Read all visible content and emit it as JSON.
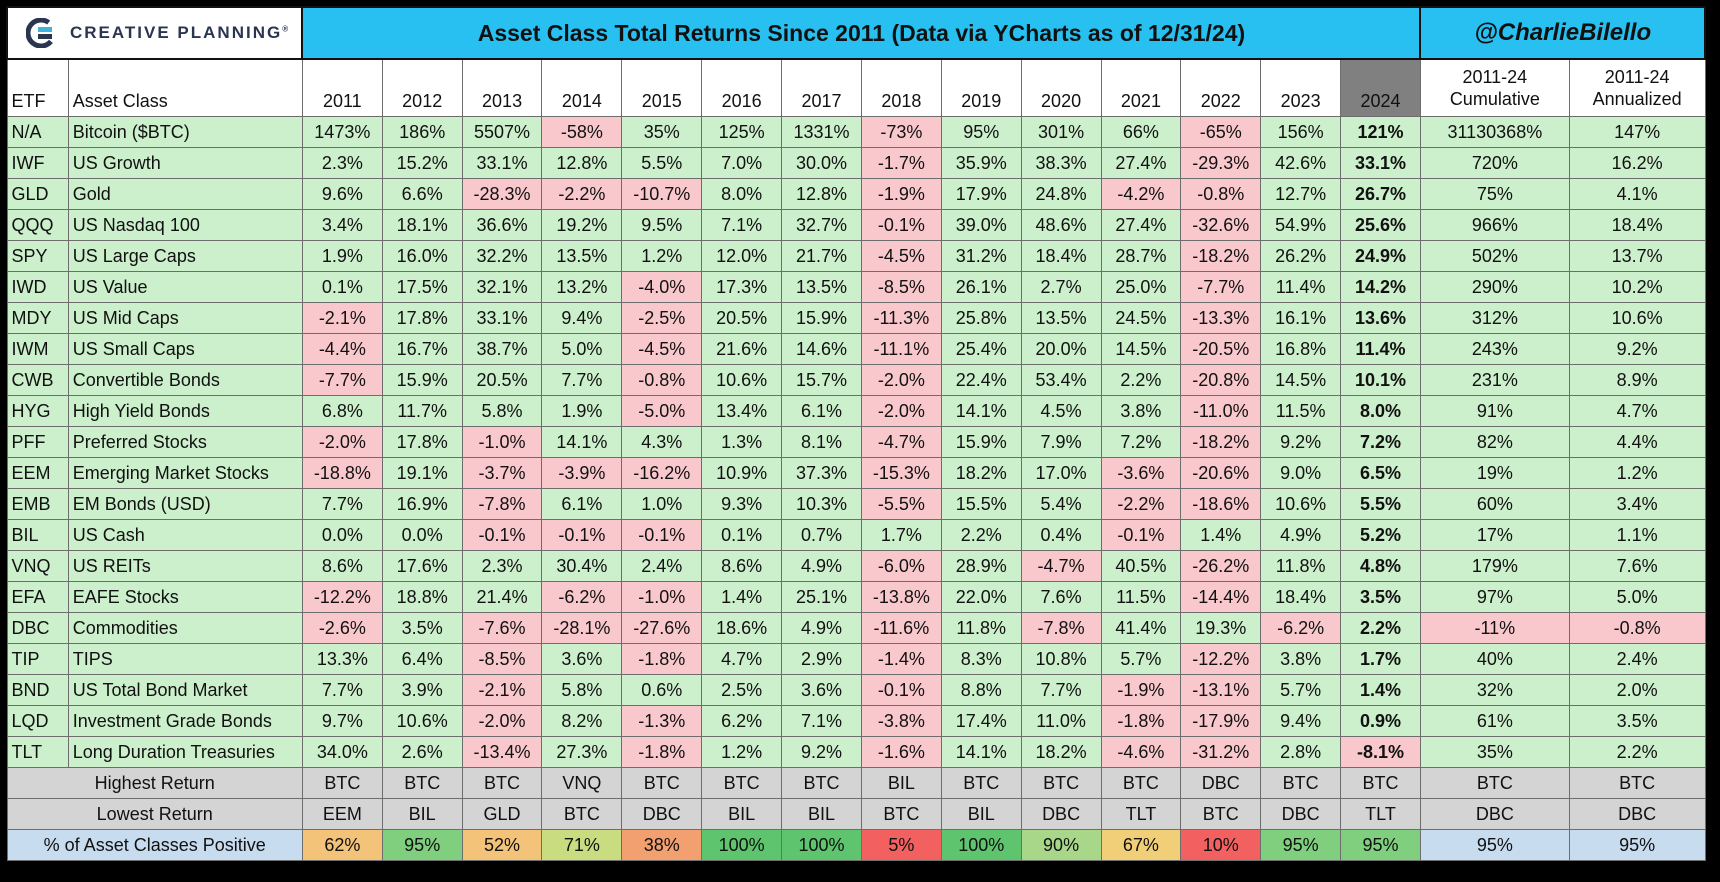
{
  "header": {
    "logo_text": "CREATIVE PLANNING",
    "logo_tm": "®",
    "title": "Asset Class Total Returns Since 2011 (Data via YCharts as of 12/31/24)",
    "handle": "@CharlieBilello"
  },
  "columns": {
    "etf": "ETF",
    "asset_class": "Asset Class",
    "years": [
      "2011",
      "2012",
      "2013",
      "2014",
      "2015",
      "2016",
      "2017",
      "2018",
      "2019",
      "2020",
      "2021",
      "2022",
      "2023",
      "2024"
    ],
    "cum_line1": "2011-24",
    "cum_line2": "Cumulative",
    "ann_line1": "2011-24",
    "ann_line2": "Annualized"
  },
  "colors": {
    "title_bg": "#27c0f0",
    "positive": "#ccefcc",
    "negative": "#f8c8cc",
    "header_2024": "#808080",
    "summary_bg": "#d4d4d4",
    "pct_label_bg": "#c8dcf0"
  },
  "chart_data": {
    "type": "table",
    "title": "Asset Class Total Returns Since 2011 (Data via YCharts as of 12/31/24)",
    "rows": [
      {
        "etf": "N/A",
        "asset": "Bitcoin ($BTC)",
        "values": [
          "1473%",
          "186%",
          "5507%",
          "-58%",
          "35%",
          "125%",
          "1331%",
          "-73%",
          "95%",
          "301%",
          "66%",
          "-65%",
          "156%",
          "121%"
        ],
        "cumulative": "31130368%",
        "annualized": "147%"
      },
      {
        "etf": "IWF",
        "asset": "US Growth",
        "values": [
          "2.3%",
          "15.2%",
          "33.1%",
          "12.8%",
          "5.5%",
          "7.0%",
          "30.0%",
          "-1.7%",
          "35.9%",
          "38.3%",
          "27.4%",
          "-29.3%",
          "42.6%",
          "33.1%"
        ],
        "cumulative": "720%",
        "annualized": "16.2%"
      },
      {
        "etf": "GLD",
        "asset": "Gold",
        "values": [
          "9.6%",
          "6.6%",
          "-28.3%",
          "-2.2%",
          "-10.7%",
          "8.0%",
          "12.8%",
          "-1.9%",
          "17.9%",
          "24.8%",
          "-4.2%",
          "-0.8%",
          "12.7%",
          "26.7%"
        ],
        "cumulative": "75%",
        "annualized": "4.1%"
      },
      {
        "etf": "QQQ",
        "asset": "US Nasdaq 100",
        "values": [
          "3.4%",
          "18.1%",
          "36.6%",
          "19.2%",
          "9.5%",
          "7.1%",
          "32.7%",
          "-0.1%",
          "39.0%",
          "48.6%",
          "27.4%",
          "-32.6%",
          "54.9%",
          "25.6%"
        ],
        "cumulative": "966%",
        "annualized": "18.4%"
      },
      {
        "etf": "SPY",
        "asset": "US Large Caps",
        "values": [
          "1.9%",
          "16.0%",
          "32.2%",
          "13.5%",
          "1.2%",
          "12.0%",
          "21.7%",
          "-4.5%",
          "31.2%",
          "18.4%",
          "28.7%",
          "-18.2%",
          "26.2%",
          "24.9%"
        ],
        "cumulative": "502%",
        "annualized": "13.7%"
      },
      {
        "etf": "IWD",
        "asset": "US Value",
        "values": [
          "0.1%",
          "17.5%",
          "32.1%",
          "13.2%",
          "-4.0%",
          "17.3%",
          "13.5%",
          "-8.5%",
          "26.1%",
          "2.7%",
          "25.0%",
          "-7.7%",
          "11.4%",
          "14.2%"
        ],
        "cumulative": "290%",
        "annualized": "10.2%"
      },
      {
        "etf": "MDY",
        "asset": "US Mid Caps",
        "values": [
          "-2.1%",
          "17.8%",
          "33.1%",
          "9.4%",
          "-2.5%",
          "20.5%",
          "15.9%",
          "-11.3%",
          "25.8%",
          "13.5%",
          "24.5%",
          "-13.3%",
          "16.1%",
          "13.6%"
        ],
        "cumulative": "312%",
        "annualized": "10.6%"
      },
      {
        "etf": "IWM",
        "asset": "US Small Caps",
        "values": [
          "-4.4%",
          "16.7%",
          "38.7%",
          "5.0%",
          "-4.5%",
          "21.6%",
          "14.6%",
          "-11.1%",
          "25.4%",
          "20.0%",
          "14.5%",
          "-20.5%",
          "16.8%",
          "11.4%"
        ],
        "cumulative": "243%",
        "annualized": "9.2%"
      },
      {
        "etf": "CWB",
        "asset": "Convertible Bonds",
        "values": [
          "-7.7%",
          "15.9%",
          "20.5%",
          "7.7%",
          "-0.8%",
          "10.6%",
          "15.7%",
          "-2.0%",
          "22.4%",
          "53.4%",
          "2.2%",
          "-20.8%",
          "14.5%",
          "10.1%"
        ],
        "cumulative": "231%",
        "annualized": "8.9%"
      },
      {
        "etf": "HYG",
        "asset": "High Yield Bonds",
        "values": [
          "6.8%",
          "11.7%",
          "5.8%",
          "1.9%",
          "-5.0%",
          "13.4%",
          "6.1%",
          "-2.0%",
          "14.1%",
          "4.5%",
          "3.8%",
          "-11.0%",
          "11.5%",
          "8.0%"
        ],
        "cumulative": "91%",
        "annualized": "4.7%"
      },
      {
        "etf": "PFF",
        "asset": "Preferred Stocks",
        "values": [
          "-2.0%",
          "17.8%",
          "-1.0%",
          "14.1%",
          "4.3%",
          "1.3%",
          "8.1%",
          "-4.7%",
          "15.9%",
          "7.9%",
          "7.2%",
          "-18.2%",
          "9.2%",
          "7.2%"
        ],
        "cumulative": "82%",
        "annualized": "4.4%"
      },
      {
        "etf": "EEM",
        "asset": "Emerging Market Stocks",
        "values": [
          "-18.8%",
          "19.1%",
          "-3.7%",
          "-3.9%",
          "-16.2%",
          "10.9%",
          "37.3%",
          "-15.3%",
          "18.2%",
          "17.0%",
          "-3.6%",
          "-20.6%",
          "9.0%",
          "6.5%"
        ],
        "cumulative": "19%",
        "annualized": "1.2%"
      },
      {
        "etf": "EMB",
        "asset": "EM Bonds (USD)",
        "values": [
          "7.7%",
          "16.9%",
          "-7.8%",
          "6.1%",
          "1.0%",
          "9.3%",
          "10.3%",
          "-5.5%",
          "15.5%",
          "5.4%",
          "-2.2%",
          "-18.6%",
          "10.6%",
          "5.5%"
        ],
        "cumulative": "60%",
        "annualized": "3.4%"
      },
      {
        "etf": "BIL",
        "asset": "US Cash",
        "values": [
          "0.0%",
          "0.0%",
          "-0.1%",
          "-0.1%",
          "-0.1%",
          "0.1%",
          "0.7%",
          "1.7%",
          "2.2%",
          "0.4%",
          "-0.1%",
          "1.4%",
          "4.9%",
          "5.2%"
        ],
        "cumulative": "17%",
        "annualized": "1.1%"
      },
      {
        "etf": "VNQ",
        "asset": "US REITs",
        "values": [
          "8.6%",
          "17.6%",
          "2.3%",
          "30.4%",
          "2.4%",
          "8.6%",
          "4.9%",
          "-6.0%",
          "28.9%",
          "-4.7%",
          "40.5%",
          "-26.2%",
          "11.8%",
          "4.8%"
        ],
        "cumulative": "179%",
        "annualized": "7.6%"
      },
      {
        "etf": "EFA",
        "asset": "EAFE Stocks",
        "values": [
          "-12.2%",
          "18.8%",
          "21.4%",
          "-6.2%",
          "-1.0%",
          "1.4%",
          "25.1%",
          "-13.8%",
          "22.0%",
          "7.6%",
          "11.5%",
          "-14.4%",
          "18.4%",
          "3.5%"
        ],
        "cumulative": "97%",
        "annualized": "5.0%"
      },
      {
        "etf": "DBC",
        "asset": "Commodities",
        "values": [
          "-2.6%",
          "3.5%",
          "-7.6%",
          "-28.1%",
          "-27.6%",
          "18.6%",
          "4.9%",
          "-11.6%",
          "11.8%",
          "-7.8%",
          "41.4%",
          "19.3%",
          "-6.2%",
          "2.2%"
        ],
        "cumulative": "-11%",
        "annualized": "-0.8%"
      },
      {
        "etf": "TIP",
        "asset": "TIPS",
        "values": [
          "13.3%",
          "6.4%",
          "-8.5%",
          "3.6%",
          "-1.8%",
          "4.7%",
          "2.9%",
          "-1.4%",
          "8.3%",
          "10.8%",
          "5.7%",
          "-12.2%",
          "3.8%",
          "1.7%"
        ],
        "cumulative": "40%",
        "annualized": "2.4%"
      },
      {
        "etf": "BND",
        "asset": "US Total Bond Market",
        "values": [
          "7.7%",
          "3.9%",
          "-2.1%",
          "5.8%",
          "0.6%",
          "2.5%",
          "3.6%",
          "-0.1%",
          "8.8%",
          "7.7%",
          "-1.9%",
          "-13.1%",
          "5.7%",
          "1.4%"
        ],
        "cumulative": "32%",
        "annualized": "2.0%"
      },
      {
        "etf": "LQD",
        "asset": "Investment Grade Bonds",
        "values": [
          "9.7%",
          "10.6%",
          "-2.0%",
          "8.2%",
          "-1.3%",
          "6.2%",
          "7.1%",
          "-3.8%",
          "17.4%",
          "11.0%",
          "-1.8%",
          "-17.9%",
          "9.4%",
          "0.9%"
        ],
        "cumulative": "61%",
        "annualized": "3.5%"
      },
      {
        "etf": "TLT",
        "asset": "Long Duration Treasuries",
        "values": [
          "34.0%",
          "2.6%",
          "-13.4%",
          "27.3%",
          "-1.8%",
          "1.2%",
          "9.2%",
          "-1.6%",
          "14.1%",
          "18.2%",
          "-4.6%",
          "-31.2%",
          "2.8%",
          "-8.1%"
        ],
        "cumulative": "35%",
        "annualized": "2.2%"
      }
    ],
    "summary": {
      "highest_label": "Highest Return",
      "highest": [
        "BTC",
        "BTC",
        "BTC",
        "VNQ",
        "BTC",
        "BTC",
        "BTC",
        "BIL",
        "BTC",
        "BTC",
        "BTC",
        "DBC",
        "BTC",
        "BTC",
        "BTC",
        "BTC"
      ],
      "lowest_label": "Lowest Return",
      "lowest": [
        "EEM",
        "BIL",
        "GLD",
        "BTC",
        "DBC",
        "BIL",
        "BIL",
        "BTC",
        "BIL",
        "DBC",
        "TLT",
        "BTC",
        "DBC",
        "TLT",
        "DBC",
        "DBC"
      ],
      "pct_label": "% of Asset Classes Positive",
      "pct_positive": [
        "62%",
        "95%",
        "52%",
        "71%",
        "38%",
        "100%",
        "100%",
        "5%",
        "100%",
        "90%",
        "67%",
        "10%",
        "95%",
        "95%",
        "95%",
        "95%"
      ],
      "pct_colors": [
        "#f4c37a",
        "#7fcf7f",
        "#f4c37a",
        "#c9dc80",
        "#f3a070",
        "#5ec46e",
        "#5ec46e",
        "#f26060",
        "#5ec46e",
        "#a9d78a",
        "#f1cf79",
        "#f26060",
        "#7fcf7f",
        "#7fcf7f",
        "#c8dcf0",
        "#c8dcf0"
      ]
    }
  }
}
